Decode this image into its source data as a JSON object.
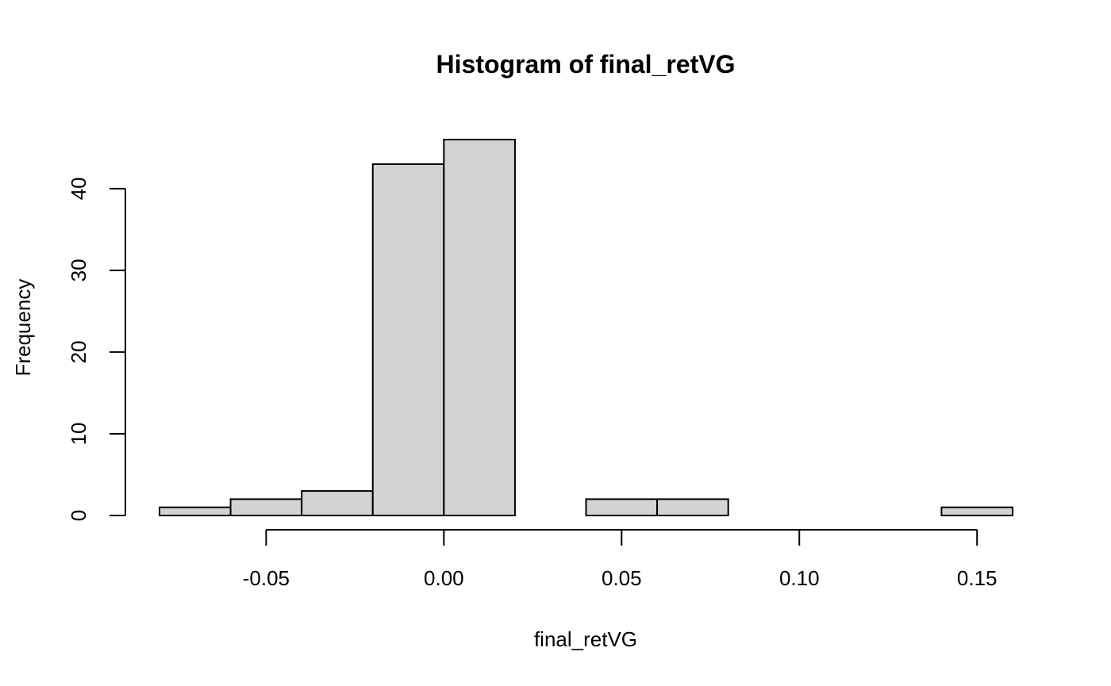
{
  "chart_data": {
    "type": "bar",
    "subtype": "histogram",
    "title": "Histogram of final_retVG",
    "xlabel": "final_retVG",
    "ylabel": "Frequency",
    "bin_edges": [
      -0.08,
      -0.06,
      -0.04,
      -0.02,
      0.0,
      0.02,
      0.04,
      0.06,
      0.08,
      0.1,
      0.12,
      0.14,
      0.16
    ],
    "counts": [
      1,
      2,
      3,
      43,
      46,
      0,
      2,
      2,
      0,
      0,
      0,
      1
    ],
    "xlim": [
      -0.08,
      0.16
    ],
    "ylim": [
      0,
      46
    ],
    "x_ticks": [
      -0.05,
      0.0,
      0.05,
      0.1,
      0.15
    ],
    "x_tick_labels": [
      "-0.05",
      "0.00",
      "0.05",
      "0.10",
      "0.15"
    ],
    "y_ticks": [
      0,
      10,
      20,
      30,
      40
    ],
    "y_tick_labels": [
      "0",
      "10",
      "20",
      "30",
      "40"
    ],
    "grid": false,
    "legend": "none",
    "bar_fill": "#d3d3d3",
    "bar_stroke": "#000000"
  }
}
